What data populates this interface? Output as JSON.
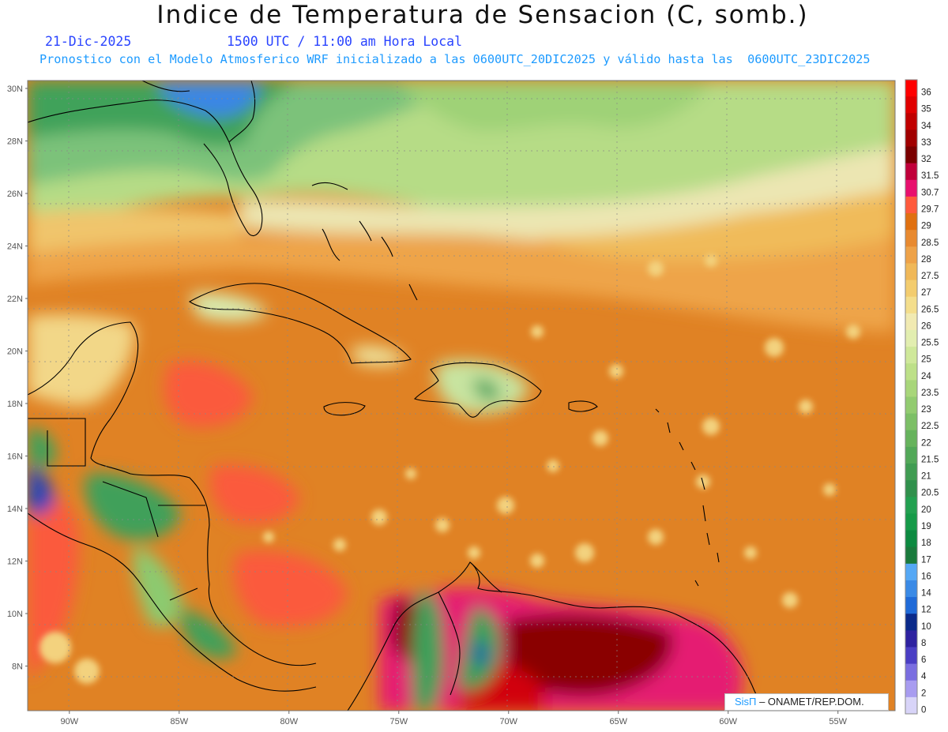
{
  "header": {
    "title": "Indice de Temperatura de Sensacion (C, somb.)",
    "date": "21-Dic-2025",
    "valid_time": "1500 UTC / 11:00 am Hora Local",
    "model_info": "Pronostico con el Modelo Atmosferico WRF inicializado a las 0600UTC_20DIC2025 y válido hasta las  0600UTC_23DIC2025"
  },
  "axes": {
    "lat_labels": [
      "30N",
      "28N",
      "26N",
      "24N",
      "22N",
      "20N",
      "18N",
      "16N",
      "14N",
      "12N",
      "10N",
      "8N"
    ],
    "lat_values": [
      30,
      28,
      26,
      24,
      22,
      20,
      18,
      16,
      14,
      12,
      10,
      8
    ],
    "lon_labels": [
      "90W",
      "85W",
      "80W",
      "75W",
      "70W",
      "65W",
      "60W",
      "55W"
    ],
    "lon_values": [
      -90,
      -85,
      -80,
      -75,
      -70,
      -65,
      -60,
      -55
    ]
  },
  "colorbar": {
    "labels": [
      "36",
      "35",
      "34",
      "33",
      "32",
      "31.5",
      "30.7",
      "29.7",
      "29",
      "28.5",
      "28",
      "27.5",
      "27",
      "26.5",
      "26",
      "25.5",
      "25",
      "24",
      "23.5",
      "23",
      "22.5",
      "22",
      "21.5",
      "21",
      "20.5",
      "20",
      "19",
      "18",
      "17",
      "16",
      "14",
      "12",
      "10",
      "8",
      "6",
      "4",
      "2",
      "0"
    ],
    "colors": [
      "#ff0000",
      "#e00000",
      "#c00000",
      "#a00000",
      "#7a0000",
      "#c0003a",
      "#e8106e",
      "#ff5a3c",
      "#e07010",
      "#e88a30",
      "#eea248",
      "#f0b858",
      "#f3cc6e",
      "#f4de8c",
      "#f1eab2",
      "#e2eeb0",
      "#cfe89a",
      "#bde088",
      "#a8d67a",
      "#92cb70",
      "#7cbf66",
      "#66b35c",
      "#52a858",
      "#409c52",
      "#30904c",
      "#22a050",
      "#159a48",
      "#0c8a40",
      "#1a7a3c",
      "#55a8f5",
      "#3a8ae6",
      "#1f6ad8",
      "#0a2a8a",
      "#2e22a0",
      "#4a3ec4",
      "#7a6ee0",
      "#a89cf0",
      "#d8d4f8"
    ]
  },
  "credit": {
    "logo": "SisΠ",
    "text": " – ONAMET/REP.DOM."
  }
}
